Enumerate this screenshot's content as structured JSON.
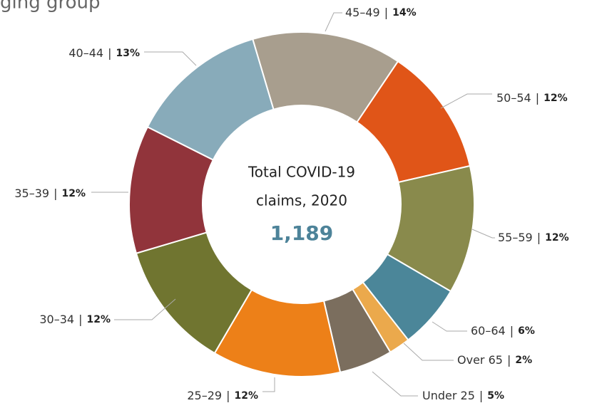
{
  "chart_data": {
    "type": "donut",
    "title": "ging group",
    "categories": [
      "45–49",
      "50–54",
      "55–59",
      "60–64",
      "Over 65",
      "Under 25",
      "25–29",
      "30–34",
      "35–39",
      "40–44"
    ],
    "values": [
      14,
      12,
      12,
      6,
      2,
      5,
      12,
      12,
      12,
      13
    ],
    "value_labels": [
      "14%",
      "12%",
      "12%",
      "6%",
      "2%",
      "5%",
      "12%",
      "12%",
      "12%",
      "13%"
    ],
    "colors": [
      "#a89e8e",
      "#e05518",
      "#898a4c",
      "#4b8699",
      "#eba94c",
      "#7b6e5e",
      "#ed8018",
      "#707530",
      "#91343b",
      "#88abba"
    ],
    "label_separator": "|",
    "center_label": [
      "Total COVID-19",
      "claims, 2020"
    ],
    "total": {
      "value": 1189,
      "label": "1,189"
    }
  }
}
